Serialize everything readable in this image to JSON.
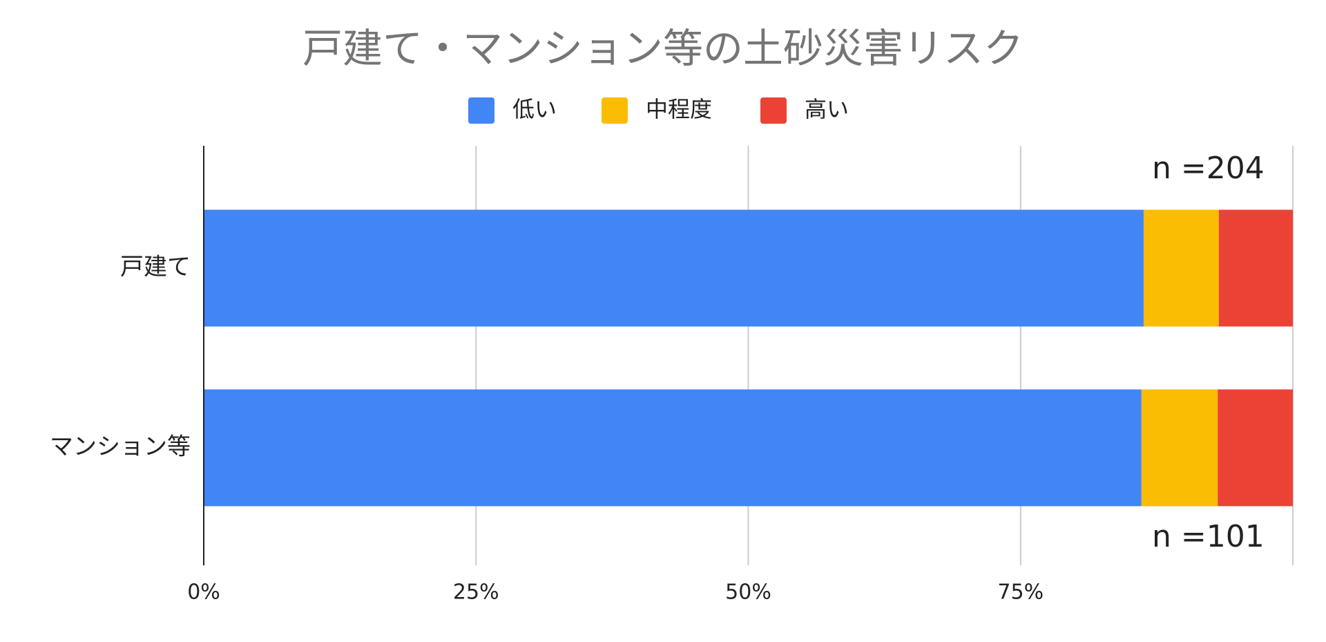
{
  "chart_data": {
    "type": "stacked-bar-horizontal",
    "title": "戸建て・マンション等の土砂災害リスク",
    "categories": [
      "戸建て",
      "マンション等"
    ],
    "series": [
      {
        "name": "低い",
        "color": "#4285f4",
        "values": [
          86.3,
          86.1
        ]
      },
      {
        "name": "中程度",
        "color": "#fbbc04",
        "values": [
          6.9,
          7.0
        ]
      },
      {
        "name": "高い",
        "color": "#ea4335",
        "values": [
          6.8,
          6.9
        ]
      }
    ],
    "xlim": [
      0,
      100
    ],
    "xticks": [
      {
        "value": 0,
        "label": "0%"
      },
      {
        "value": 25,
        "label": "25%"
      },
      {
        "value": 50,
        "label": "50%"
      },
      {
        "value": 75,
        "label": "75%"
      }
    ],
    "grid": true,
    "legend": "top",
    "annotations": [
      "n =204",
      "n =101"
    ]
  }
}
